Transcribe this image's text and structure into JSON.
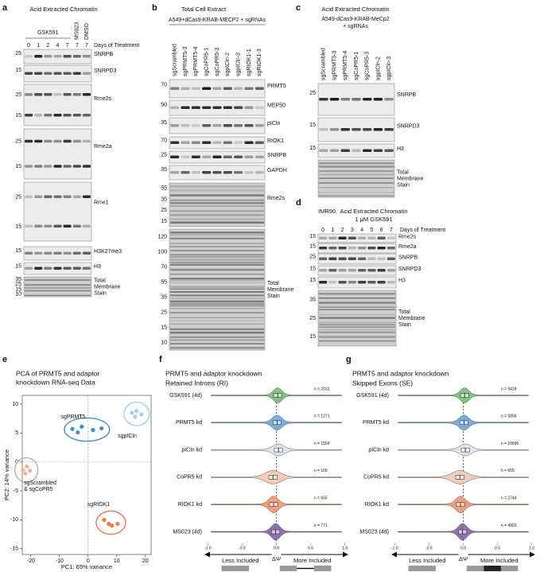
{
  "a": {
    "label": "a",
    "title": "Acid Extracted Chromatin",
    "group": "GSK591",
    "lanes": [
      "0",
      "1",
      "2",
      "4",
      "7",
      "7",
      "7"
    ],
    "lane_headers": [
      "MS023",
      "DMSO"
    ],
    "lanes_axis": "Days of Treatment",
    "blots": [
      {
        "name": "SNRPB",
        "markers": [
          "25"
        ]
      },
      {
        "name": "SNRPD3",
        "markers": [
          "15"
        ]
      },
      {
        "name": "Rme2s",
        "markers": [
          "25",
          "15"
        ]
      },
      {
        "name": "Rme2a",
        "markers": [
          "25",
          "15"
        ]
      },
      {
        "name": "Rme1",
        "markers": [
          "25",
          "15"
        ]
      },
      {
        "name": "H3K27me3",
        "markers": [
          "15"
        ]
      },
      {
        "name": "H3",
        "markers": [
          "15"
        ]
      },
      {
        "name": "Total Membrane Stain",
        "markers": [
          "35",
          "25",
          "15",
          "10"
        ]
      }
    ]
  },
  "b": {
    "label": "b",
    "title": "Total Cell Extract",
    "subtitle": "A549+dCas9-KRAB-MECP2 + sgRNAs",
    "lanes": [
      "sgScrambled",
      "sgPRMT5-3",
      "sgPRMT5-4",
      "sgCoPR5-1",
      "sgCoPR5-3",
      "sgpICln-2",
      "sgpICln-3",
      "sgRIOK1-1",
      "sgRIOK1-3"
    ],
    "blots": [
      {
        "name": "PRMT5",
        "markers": [
          "70"
        ]
      },
      {
        "name": "MEP50",
        "markers": [
          "50"
        ]
      },
      {
        "name": "pICln",
        "markers": [
          "35"
        ]
      },
      {
        "name": "RIOK1",
        "markers": [
          "70"
        ]
      },
      {
        "name": "SNRPB",
        "markers": [
          "25"
        ]
      },
      {
        "name": "GAPDH",
        "markers": [
          "35"
        ]
      },
      {
        "name": "Rme2s",
        "markers": [
          "55",
          "35",
          "25",
          "15"
        ]
      },
      {
        "name": "Total Membrane Stain",
        "markers": [
          "120",
          "100",
          "70",
          "55",
          "35",
          "25",
          "15",
          "10"
        ]
      }
    ]
  },
  "c": {
    "label": "c",
    "title": "Acid Extracted Chromatin",
    "subtitle": [
      "A549-dCas9-KRAB-MeCp2",
      "+ sgRNAs"
    ],
    "lanes": [
      "sgScrambled",
      "sgPRMT5-3",
      "sgPRMT5-4",
      "sgCoPR5-1",
      "sgCoPR5-3",
      "sgpICln-2",
      "sgpICln-3"
    ],
    "blots": [
      {
        "name": "SNRPB",
        "markers": [
          "25"
        ]
      },
      {
        "name": "SNRPD3",
        "markers": [
          "15"
        ]
      },
      {
        "name": "H3",
        "markers": [
          "15"
        ]
      },
      {
        "name": "Total Membrane Stain",
        "markers": []
      }
    ]
  },
  "d": {
    "label": "d",
    "cell_line": "IMR90",
    "title": "Acid Extracted Chromatin",
    "subtitle": "1 μM GSK591",
    "lanes": [
      "0",
      "1",
      "2",
      "3",
      "4",
      "5",
      "6",
      "7"
    ],
    "lanes_axis": "Days of Treatment",
    "blots": [
      {
        "name": "Rme2s",
        "markers": [
          "15"
        ]
      },
      {
        "name": "Rme2a",
        "markers": [
          "15"
        ]
      },
      {
        "name": "SNRPB",
        "markers": [
          "25"
        ]
      },
      {
        "name": "SNRPD3",
        "markers": [
          "15"
        ]
      },
      {
        "name": "H3",
        "markers": [
          "15"
        ]
      },
      {
        "name": "Total Membrane Stain",
        "markers": [
          "35",
          "25",
          "15"
        ]
      }
    ]
  },
  "e": {
    "label": "e",
    "chart_data": {
      "type": "scatter",
      "title": [
        "PCA of PRMT5 and adaptor",
        "knockdown RNA-seq Data"
      ],
      "xlabel": "PC1: 65% variance",
      "ylabel": "PC2: 14% variance",
      "xlim": [
        -23,
        22
      ],
      "ylim": [
        -16,
        11.5
      ],
      "xticks": [
        -20,
        -10,
        0,
        10,
        20
      ],
      "yticks": [
        -15,
        -10,
        -5,
        0,
        5,
        10
      ],
      "series": [
        {
          "name": "sgPRMT5",
          "color": "#3b8fc9",
          "x": [
            -5.5,
            -3.6,
            -2.2,
            1.7,
            4.7
          ],
          "y": [
            5.7,
            5.1,
            6.1,
            5.5,
            5.8
          ]
        },
        {
          "name": "sgpICln",
          "color": "#aacfe0",
          "x": [
            15.3,
            16.9,
            18.6,
            16.4
          ],
          "y": [
            8.5,
            8.8,
            8.2,
            7.8
          ]
        },
        {
          "name": "sgScrambled & sgCoPR5",
          "color": "#e3b89d",
          "x": [
            -22.8,
            -21.4,
            -21.9,
            -20.3
          ],
          "y": [
            -1.4,
            -0.8,
            -2,
            -1.5
          ]
        },
        {
          "name": "sgRIOK1",
          "color": "#ee7a4a",
          "x": [
            5.6,
            7.2,
            8.3,
            10.3
          ],
          "y": [
            -10,
            -10.7,
            -11,
            -10.7
          ]
        }
      ]
    }
  },
  "f": {
    "label": "f",
    "chart_data": {
      "type": "violin",
      "title": "PRMT5 and adaptor knockdown",
      "subtitle": "Retained Introns (RI)",
      "categories": [
        "GSK591 (4d)",
        "PRMT5 kd",
        "pICln kd",
        "CoPR5 kd",
        "RIOK1 kd",
        "MS023 (4d)"
      ],
      "n_labels": [
        "n = 2032",
        "n = 1271",
        "n = 1556",
        "n = 109",
        "n = 655",
        "n = 771"
      ],
      "colors": [
        "#7fc47f",
        "#7aaedc",
        "#dde6ef",
        "#f3cdb8",
        "#ef9e7e",
        "#8f70b1"
      ],
      "xlim": [
        -1.05,
        1.05
      ],
      "xticks": [
        {
          "value": -1,
          "label": "-1.0"
        },
        {
          "value": -0.5,
          "label": "-0.5"
        },
        {
          "value": 0,
          "label": "0.0"
        },
        {
          "value": 0.5,
          "label": "0.5"
        },
        {
          "value": 1,
          "label": "1.0"
        }
      ],
      "xlabel": "ΔΨ",
      "left_label": "Less Included",
      "right_label": "More Included"
    }
  },
  "g": {
    "label": "g",
    "chart_data": {
      "type": "violin",
      "title": "PRMT5 and adaptor knockdown",
      "subtitle": "Skipped Exons (SE)",
      "categories": [
        "GSK591 (4d)",
        "PRMT5 kd",
        "pICln kd",
        "CoPR5 kd",
        "RIOK1 kd",
        "MS023 (4d)"
      ],
      "n_labels": [
        "n = 9428",
        "n = 5804",
        "n = 10696",
        "n = 655",
        "n = 2744",
        "n = 4903"
      ],
      "colors": [
        "#7fc47f",
        "#7aaedc",
        "#dde6ef",
        "#f3cdb8",
        "#ef9e7e",
        "#8f70b1"
      ],
      "xlim": [
        -1.05,
        1.05
      ],
      "xticks": [
        {
          "value": -1,
          "label": "-1.0"
        },
        {
          "value": -0.5,
          "label": "-0.5"
        },
        {
          "value": 0,
          "label": "0.0"
        },
        {
          "value": 0.5,
          "label": "0.5"
        },
        {
          "value": 1,
          "label": "1.0"
        }
      ],
      "xlabel": "ΔΨ",
      "left_label": "Less Included",
      "right_label": "More Included"
    }
  }
}
